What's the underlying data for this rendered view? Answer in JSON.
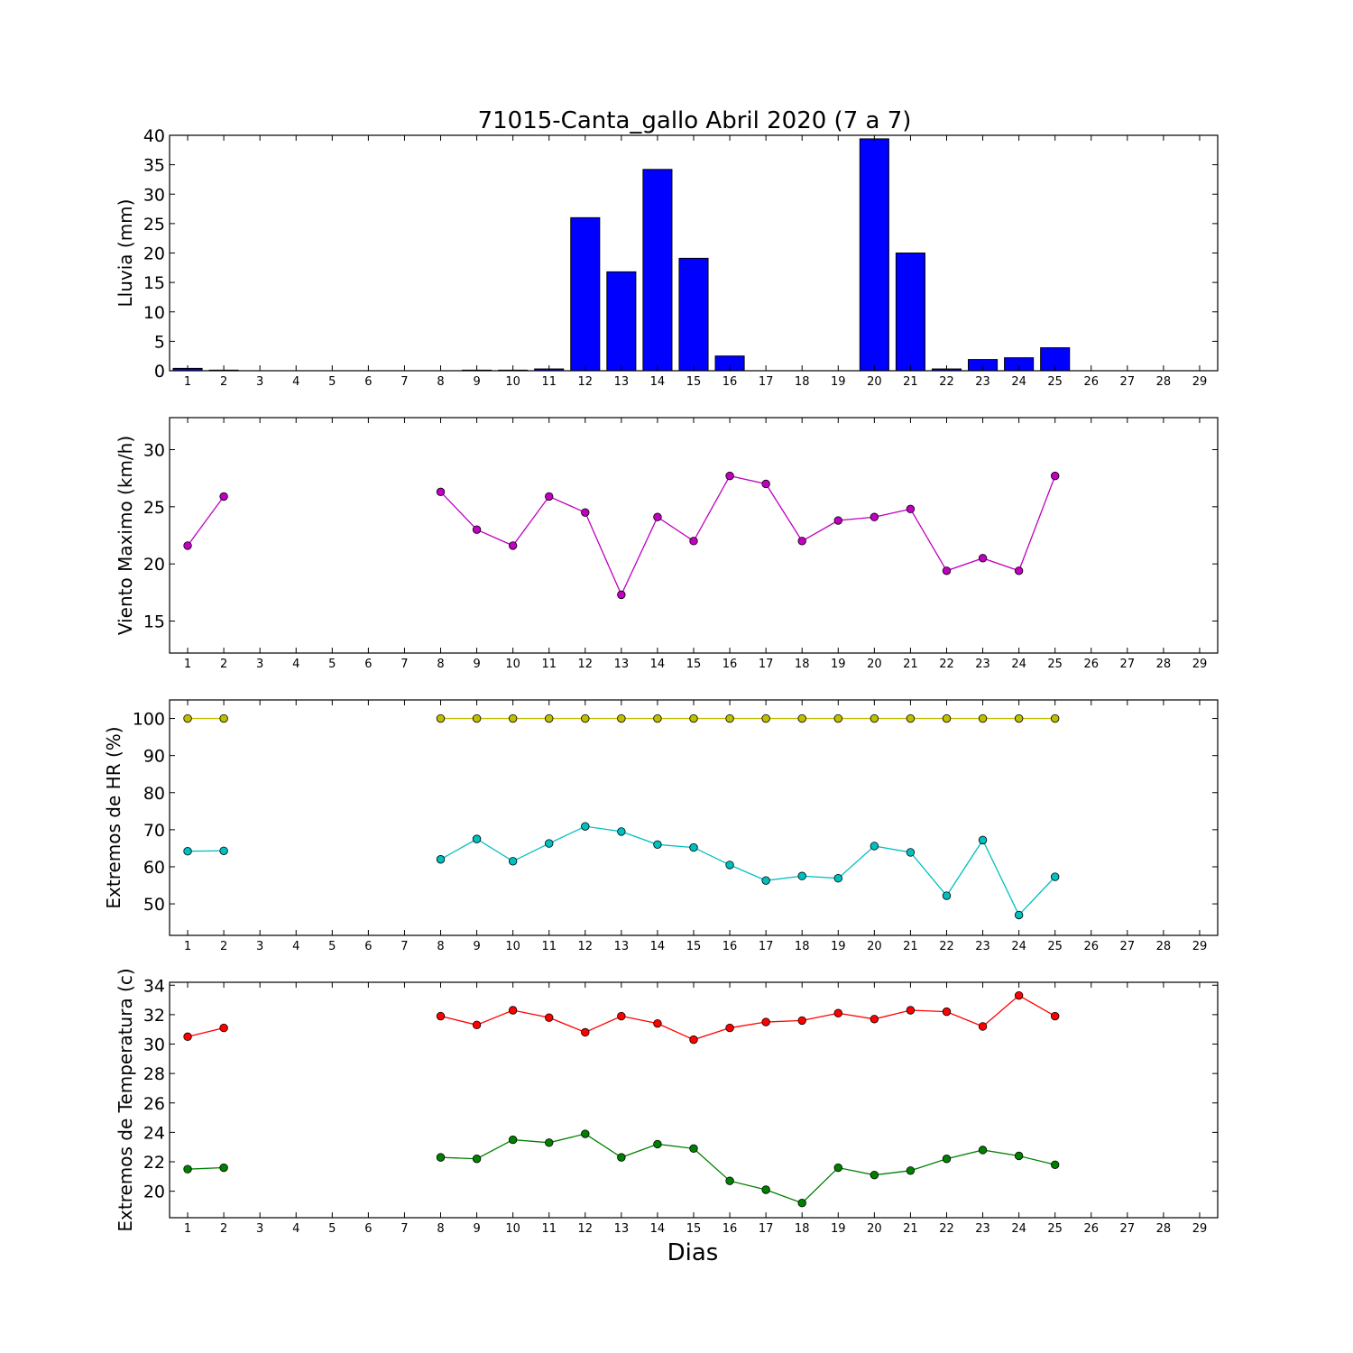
{
  "figure": {
    "title": "71015-Canta_gallo Abril 2020  (7 a 7)",
    "xlabel": "Dias"
  },
  "chart_data": [
    {
      "type": "bar",
      "id": "lluvia",
      "title": "71015-Canta_gallo Abril 2020  (7 a 7)",
      "ylabel": "Lluvia (mm)",
      "xlim": [
        0.5,
        29.5
      ],
      "ylim": [
        0,
        40
      ],
      "yticks": [
        0,
        5,
        10,
        15,
        20,
        25,
        30,
        35,
        40
      ],
      "xticks": [
        1,
        2,
        3,
        4,
        5,
        6,
        7,
        8,
        9,
        10,
        11,
        12,
        13,
        14,
        15,
        16,
        17,
        18,
        19,
        20,
        21,
        22,
        23,
        24,
        25,
        26,
        27,
        28,
        29
      ],
      "x": [
        1,
        2,
        3,
        4,
        5,
        6,
        7,
        8,
        9,
        10,
        11,
        12,
        13,
        14,
        15,
        16,
        17,
        18,
        19,
        20,
        21,
        22,
        23,
        24,
        25
      ],
      "values": [
        0.4,
        0.1,
        0,
        0,
        0,
        0,
        0,
        0,
        0.1,
        0.1,
        0.3,
        26.0,
        16.8,
        34.2,
        19.1,
        2.5,
        0,
        0,
        0,
        39.4,
        20.0,
        0.3,
        1.9,
        2.2,
        3.9
      ],
      "color": "#0000ff"
    },
    {
      "type": "line",
      "id": "viento",
      "ylabel": "Viento Maximo (km/h)",
      "xlim": [
        0.5,
        29.5
      ],
      "ylim": [
        12.2,
        32.8
      ],
      "yticks": [
        15,
        20,
        25,
        30
      ],
      "xticks": [
        1,
        2,
        3,
        4,
        5,
        6,
        7,
        8,
        9,
        10,
        11,
        12,
        13,
        14,
        15,
        16,
        17,
        18,
        19,
        20,
        21,
        22,
        23,
        24,
        25,
        26,
        27,
        28,
        29
      ],
      "series": [
        {
          "color": "#bf00bf",
          "x": [
            1,
            2,
            3,
            4,
            5,
            6,
            7,
            8,
            9,
            10,
            11,
            12,
            13,
            14,
            15,
            16,
            17,
            18,
            19,
            20,
            21,
            22,
            23,
            24,
            25
          ],
          "y": [
            21.6,
            25.9,
            null,
            null,
            null,
            null,
            null,
            26.3,
            23.0,
            21.6,
            25.9,
            24.5,
            17.3,
            24.1,
            22.0,
            27.7,
            27.0,
            22.0,
            23.8,
            24.1,
            24.8,
            19.4,
            20.5,
            19.4,
            27.7
          ]
        }
      ]
    },
    {
      "type": "line",
      "id": "hr",
      "ylabel": "Extremos de HR (%)",
      "xlim": [
        0.5,
        29.5
      ],
      "ylim": [
        41.5,
        105
      ],
      "yticks": [
        50,
        60,
        70,
        80,
        90,
        100
      ],
      "xticks": [
        1,
        2,
        3,
        4,
        5,
        6,
        7,
        8,
        9,
        10,
        11,
        12,
        13,
        14,
        15,
        16,
        17,
        18,
        19,
        20,
        21,
        22,
        23,
        24,
        25,
        26,
        27,
        28,
        29
      ],
      "series": [
        {
          "color": "#bfbf00",
          "x": [
            1,
            2,
            3,
            4,
            5,
            6,
            7,
            8,
            9,
            10,
            11,
            12,
            13,
            14,
            15,
            16,
            17,
            18,
            19,
            20,
            21,
            22,
            23,
            24,
            25
          ],
          "y": [
            100,
            100,
            null,
            null,
            null,
            null,
            null,
            100,
            100,
            100,
            100,
            100,
            100,
            100,
            100,
            100,
            100,
            100,
            100,
            100,
            100,
            100,
            100,
            100,
            100
          ]
        },
        {
          "color": "#00bfbf",
          "x": [
            1,
            2,
            3,
            4,
            5,
            6,
            7,
            8,
            9,
            10,
            11,
            12,
            13,
            14,
            15,
            16,
            17,
            18,
            19,
            20,
            21,
            22,
            23,
            24,
            25
          ],
          "y": [
            64.2,
            64.3,
            null,
            null,
            null,
            null,
            null,
            62.0,
            67.5,
            61.5,
            66.3,
            70.9,
            69.5,
            66.0,
            65.2,
            60.5,
            56.3,
            57.5,
            56.9,
            65.6,
            63.9,
            52.2,
            67.2,
            47.0,
            57.3
          ]
        }
      ]
    },
    {
      "type": "line",
      "id": "temperatura",
      "ylabel": "Extremos de Temperatura (c)",
      "xlim": [
        0.5,
        29.5
      ],
      "ylim": [
        18.2,
        34.2
      ],
      "yticks": [
        20,
        22,
        24,
        26,
        28,
        30,
        32,
        34
      ],
      "xticks": [
        1,
        2,
        3,
        4,
        5,
        6,
        7,
        8,
        9,
        10,
        11,
        12,
        13,
        14,
        15,
        16,
        17,
        18,
        19,
        20,
        21,
        22,
        23,
        24,
        25,
        26,
        27,
        28,
        29
      ],
      "series": [
        {
          "color": "#ff0000",
          "x": [
            1,
            2,
            3,
            4,
            5,
            6,
            7,
            8,
            9,
            10,
            11,
            12,
            13,
            14,
            15,
            16,
            17,
            18,
            19,
            20,
            21,
            22,
            23,
            24,
            25
          ],
          "y": [
            30.5,
            31.1,
            null,
            null,
            null,
            null,
            null,
            31.9,
            31.3,
            32.3,
            31.8,
            30.8,
            31.9,
            31.4,
            30.3,
            31.1,
            31.5,
            31.6,
            32.1,
            31.7,
            32.3,
            32.2,
            31.2,
            33.3,
            31.9
          ]
        },
        {
          "color": "#008000",
          "x": [
            1,
            2,
            3,
            4,
            5,
            6,
            7,
            8,
            9,
            10,
            11,
            12,
            13,
            14,
            15,
            16,
            17,
            18,
            19,
            20,
            21,
            22,
            23,
            24,
            25
          ],
          "y": [
            21.5,
            21.6,
            null,
            null,
            null,
            null,
            null,
            22.3,
            22.2,
            23.5,
            23.3,
            23.9,
            22.3,
            23.2,
            22.9,
            20.7,
            20.1,
            19.2,
            21.6,
            21.1,
            21.4,
            22.2,
            22.8,
            22.4,
            21.8
          ]
        }
      ]
    }
  ]
}
